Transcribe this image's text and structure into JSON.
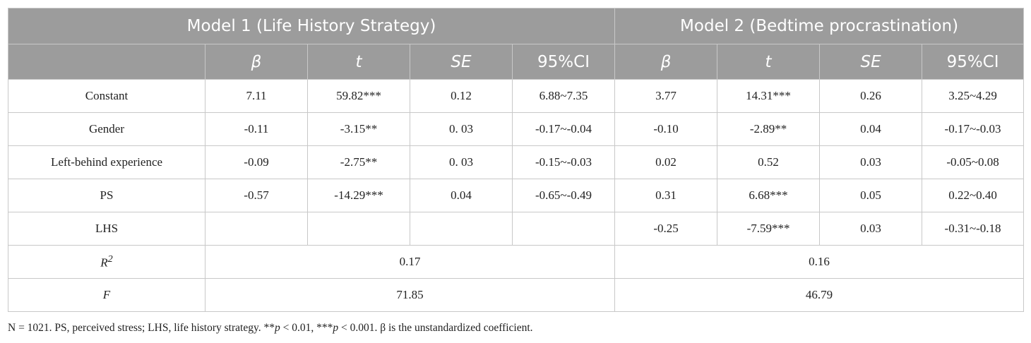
{
  "header": {
    "model1": "Model 1 (Life History Strategy)",
    "model2": "Model 2 (Bedtime procrastination)",
    "cols": [
      "β",
      "t",
      "SE",
      "95%CI"
    ]
  },
  "rows": [
    {
      "label": "Constant",
      "m1": [
        "7.11",
        "59.82***",
        "0.12",
        "6.88~7.35"
      ],
      "m2": [
        "3.77",
        "14.31***",
        "0.26",
        "3.25~4.29"
      ]
    },
    {
      "label": "Gender",
      "m1": [
        "-0.11",
        "-3.15**",
        "0. 03",
        "-0.17~-0.04"
      ],
      "m2": [
        "-0.10",
        "-2.89**",
        "0.04",
        "-0.17~-0.03"
      ]
    },
    {
      "label": "Left-behind experience",
      "m1": [
        "-0.09",
        "-2.75**",
        "0. 03",
        "-0.15~-0.03"
      ],
      "m2": [
        "0.02",
        "0.52",
        "0.03",
        "-0.05~0.08"
      ]
    },
    {
      "label": "PS",
      "m1": [
        "-0.57",
        "-14.29***",
        "0.04",
        "-0.65~-0.49"
      ],
      "m2": [
        "0.31",
        "6.68***",
        "0.05",
        "0.22~0.40"
      ]
    },
    {
      "label": "LHS",
      "m1": [
        "",
        "",
        "",
        ""
      ],
      "m2": [
        "-0.25",
        "-7.59***",
        "0.03",
        "-0.31~-0.18"
      ]
    }
  ],
  "fit": {
    "r2_label": "R",
    "r2_sup": "2",
    "r2_m1": "0.17",
    "r2_m2": "0.16",
    "f_label": "F",
    "f_m1": "71.85",
    "f_m2": "46.79"
  },
  "note": {
    "part1": "N = 1021. PS, perceived stress; LHS, life history strategy. **",
    "p1": "p",
    "part2": " < 0.01, ***",
    "p2": "p",
    "part3": " < 0.001. β is the unstandardized coefficient."
  }
}
